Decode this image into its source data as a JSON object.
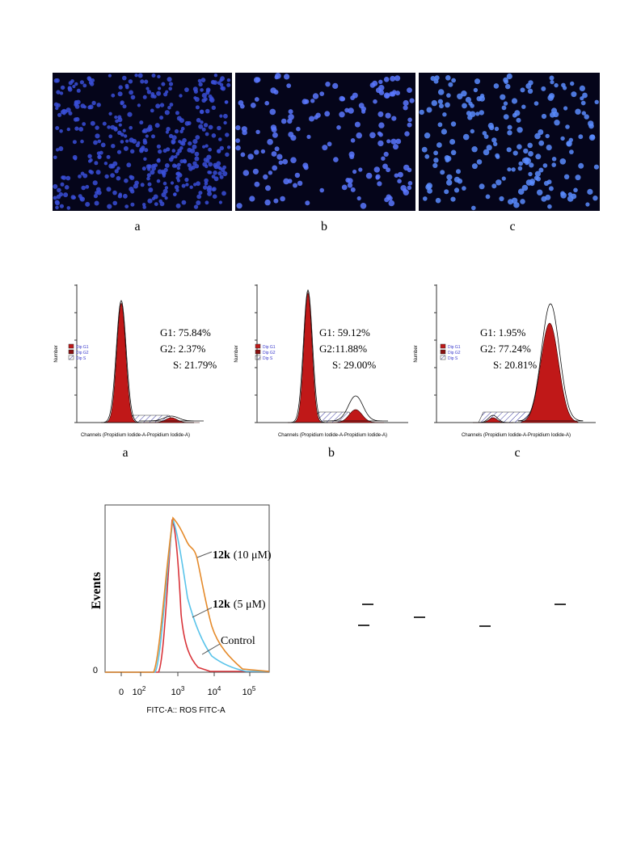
{
  "figure1": {
    "panel_labels": [
      "a",
      "b",
      "c"
    ]
  },
  "figure2": {
    "legend": [
      "Dip G1",
      "Dip G2",
      "Dip S"
    ],
    "y_axis_label": "Number",
    "x_axis_label": "Channels (Propidium Iodide-A-Propidium Iodide-A)",
    "panels": [
      {
        "label": "a",
        "g1": "G1: 75.84%",
        "g2": "G2: 2.37%",
        "s": "S: 21.79%"
      },
      {
        "label": "b",
        "g1": "G1: 59.12%",
        "g2": "G2:11.88%",
        "s": "S: 29.00%"
      },
      {
        "label": "c",
        "g1": "G1: 1.95%",
        "g2": "G2: 77.24%",
        "s": "S: 20.81%"
      }
    ]
  },
  "figure3": {
    "y_axis_label": "Events",
    "y_tick": "0",
    "x_ticks": [
      {
        "text": "0"
      },
      {
        "base": "10",
        "exp": "2"
      },
      {
        "base": "10",
        "exp": "3"
      },
      {
        "base": "10",
        "exp": "4"
      },
      {
        "base": "10",
        "exp": "5"
      }
    ],
    "x_axis_label": "FITC-A:: ROS FITC-A",
    "annotations": [
      {
        "bold": "12k",
        "rest": "(10 μM)"
      },
      {
        "bold": "12k",
        "rest": "(5 μM)"
      },
      {
        "text": "Control"
      }
    ]
  }
}
